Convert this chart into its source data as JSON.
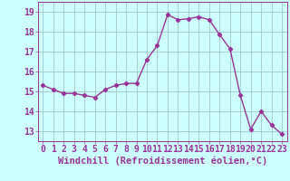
{
  "x": [
    0,
    1,
    2,
    3,
    4,
    5,
    6,
    7,
    8,
    9,
    10,
    11,
    12,
    13,
    14,
    15,
    16,
    17,
    18,
    19,
    20,
    21,
    22,
    23
  ],
  "y": [
    15.3,
    15.1,
    14.9,
    14.9,
    14.8,
    14.7,
    15.1,
    15.3,
    15.4,
    15.4,
    16.6,
    17.3,
    18.85,
    18.6,
    18.65,
    18.75,
    18.6,
    17.85,
    17.15,
    14.8,
    13.1,
    14.0,
    13.3,
    12.85
  ],
  "line_color": "#993399",
  "marker": "D",
  "marker_size": 2.2,
  "line_width": 1.0,
  "bg_color": "#ccffff",
  "grid_color": "#99bbbb",
  "xlabel": "Windchill (Refroidissement éolien,°C)",
  "xlabel_fontsize": 7.5,
  "tick_fontsize": 7.0,
  "xlim": [
    -0.5,
    23.5
  ],
  "ylim": [
    12.5,
    19.5
  ],
  "yticks": [
    13,
    14,
    15,
    16,
    17,
    18,
    19
  ],
  "xticks": [
    0,
    1,
    2,
    3,
    4,
    5,
    6,
    7,
    8,
    9,
    10,
    11,
    12,
    13,
    14,
    15,
    16,
    17,
    18,
    19,
    20,
    21,
    22,
    23
  ]
}
